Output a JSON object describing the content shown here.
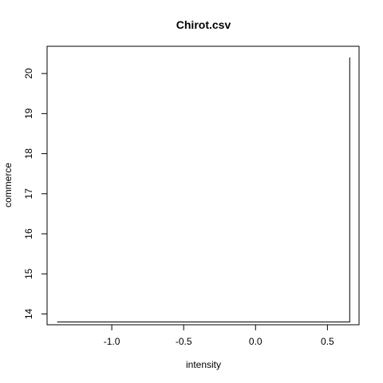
{
  "chart_data": {
    "type": "line",
    "title": "Chirot.csv",
    "xlabel": "intensity",
    "ylabel": "commerce",
    "xlim": [
      -1.45,
      0.72
    ],
    "ylim": [
      13.73,
      20.68
    ],
    "x_ticks": [
      -1.0,
      -0.5,
      0.0,
      0.5
    ],
    "x_tick_labels": [
      "-1.0",
      "-0.5",
      "0.0",
      "0.5"
    ],
    "y_ticks": [
      14,
      15,
      16,
      17,
      18,
      19,
      20
    ],
    "y_tick_labels": [
      "14",
      "15",
      "16",
      "17",
      "18",
      "19",
      "20"
    ],
    "grid": false,
    "legend": "none",
    "series": [
      {
        "x": [
          -1.38,
          0.655,
          0.655
        ],
        "y": [
          13.8,
          13.8,
          20.4
        ],
        "color": "#000000"
      }
    ]
  }
}
